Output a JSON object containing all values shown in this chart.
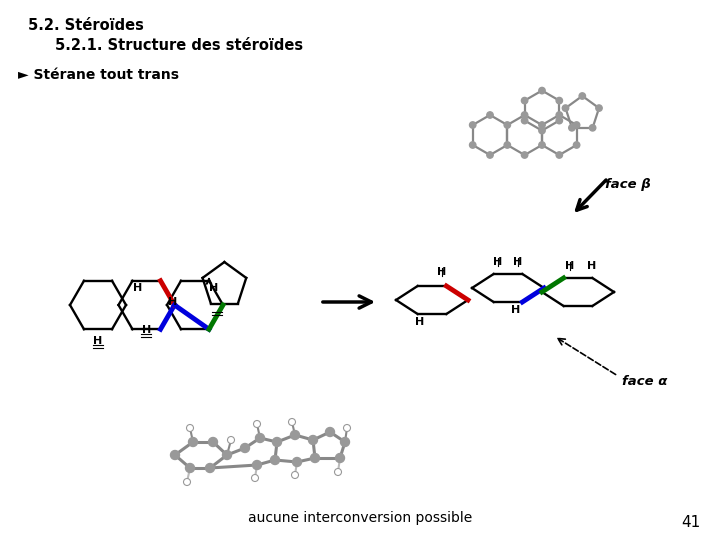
{
  "title1": "5.2. Stéroïdes",
  "title2": "5.2.1. Structure des stéroïdes",
  "title3": "Ø Stérane tout trans",
  "label_face_beta": "face β",
  "label_face_alpha": "face α",
  "label_bottom": "aucune interconversion possible",
  "page_number": "41",
  "bg_color": "#ffffff",
  "text_color": "#000000",
  "gray_color": "#888888",
  "node_color": "#999999",
  "blue_color": "#0000dd",
  "red_color": "#cc0000",
  "green_color": "#007700"
}
